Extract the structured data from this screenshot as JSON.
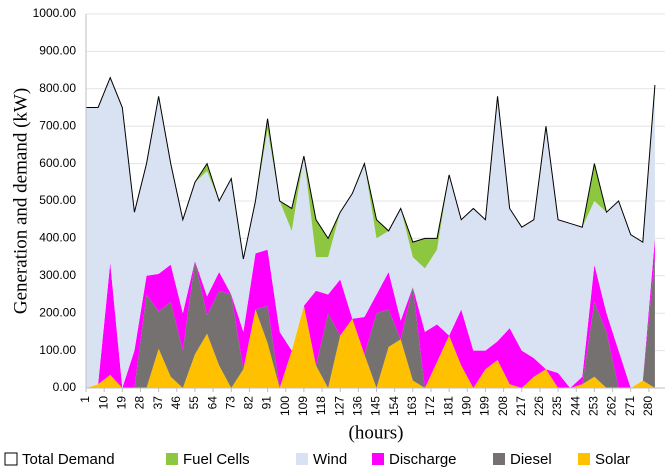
{
  "chart_data": {
    "type": "stacked_area",
    "y_label": "Generation and demand (kW)",
    "x_label": "(hours)",
    "x": [
      1,
      7,
      13,
      19,
      25,
      31,
      37,
      43,
      49,
      55,
      61,
      67,
      73,
      79,
      85,
      91,
      97,
      103,
      109,
      115,
      121,
      127,
      133,
      139,
      145,
      151,
      157,
      163,
      169,
      175,
      181,
      187,
      193,
      199,
      205,
      211,
      217,
      223,
      229,
      235,
      241,
      247,
      253,
      259,
      265,
      271,
      277,
      283
    ],
    "xlim": [
      1,
      288
    ],
    "xticks": [
      1,
      10,
      19,
      28,
      37,
      46,
      55,
      64,
      73,
      82,
      91,
      100,
      109,
      118,
      127,
      136,
      145,
      154,
      163,
      172,
      181,
      190,
      199,
      208,
      217,
      226,
      235,
      244,
      253,
      262,
      271,
      280
    ],
    "ylim": [
      0,
      1000
    ],
    "yticks": [
      {
        "value": 0,
        "label": "0.00"
      },
      {
        "value": 100,
        "label": "100.00"
      },
      {
        "value": 200,
        "label": "200.00"
      },
      {
        "value": 300,
        "label": "300.00"
      },
      {
        "value": 400,
        "label": "400.00"
      },
      {
        "value": 500,
        "label": "500.00"
      },
      {
        "value": 600,
        "label": "600.00"
      },
      {
        "value": 700,
        "label": "700.00"
      },
      {
        "value": 800,
        "label": "800.00"
      },
      {
        "value": 900,
        "label": "900.00"
      },
      {
        "value": 1000,
        "label": "1000.00"
      }
    ],
    "grid": true,
    "legend": "bottom",
    "series": [
      {
        "name": "Total Demand",
        "type": "line",
        "color": "#000000",
        "values": [
          750,
          750,
          830,
          750,
          470,
          600,
          780,
          600,
          450,
          550,
          600,
          500,
          560,
          345,
          500,
          720,
          500,
          480,
          620,
          450,
          400,
          470,
          520,
          600,
          450,
          420,
          480,
          390,
          400,
          400,
          570,
          450,
          480,
          450,
          780,
          480,
          430,
          450,
          700,
          450,
          440,
          430,
          600,
          470,
          500,
          410,
          390,
          810
        ]
      },
      {
        "name": "Fuel Cells",
        "color": "#8dc63f",
        "values": [
          0,
          0,
          0,
          0,
          0,
          0,
          0,
          0,
          0,
          0,
          20,
          0,
          0,
          0,
          0,
          30,
          0,
          60,
          0,
          100,
          50,
          0,
          0,
          0,
          50,
          0,
          0,
          40,
          80,
          30,
          0,
          0,
          0,
          0,
          0,
          0,
          0,
          0,
          0,
          0,
          0,
          0,
          100,
          0,
          0,
          0,
          0,
          20
        ]
      },
      {
        "name": "Wind",
        "color": "#d9e2f3",
        "values": [
          750,
          740,
          495,
          750,
          370,
          300,
          475,
          270,
          250,
          210,
          335,
          190,
          310,
          195,
          140,
          320,
          350,
          320,
          400,
          90,
          100,
          180,
          335,
          410,
          150,
          110,
          300,
          80,
          170,
          200,
          430,
          240,
          380,
          350,
          655,
          320,
          330,
          370,
          650,
          410,
          440,
          400,
          170,
          270,
          400,
          410,
          370,
          390
        ]
      },
      {
        "name": "Discharge",
        "color": "#ff00ff",
        "values": [
          0,
          0,
          300,
          0,
          100,
          50,
          100,
          100,
          100,
          0,
          50,
          50,
          0,
          100,
          150,
          150,
          150,
          0,
          0,
          200,
          50,
          150,
          0,
          100,
          50,
          100,
          50,
          0,
          150,
          100,
          0,
          150,
          100,
          50,
          50,
          150,
          100,
          50,
          0,
          40,
          0,
          20,
          100,
          50,
          100,
          0,
          0,
          50
        ]
      },
      {
        "name": "Diesel",
        "color": "#767171",
        "values": [
          0,
          0,
          0,
          0,
          0,
          250,
          100,
          200,
          100,
          250,
          50,
          200,
          250,
          0,
          0,
          100,
          0,
          0,
          0,
          0,
          200,
          0,
          0,
          0,
          200,
          100,
          0,
          250,
          0,
          0,
          0,
          0,
          0,
          0,
          0,
          0,
          0,
          0,
          0,
          0,
          0,
          0,
          200,
          150,
          0,
          0,
          0,
          350
        ]
      },
      {
        "name": "Solar",
        "color": "#ffc000",
        "values": [
          0,
          10,
          35,
          0,
          0,
          0,
          105,
          30,
          0,
          90,
          145,
          60,
          0,
          50,
          210,
          120,
          0,
          100,
          220,
          60,
          0,
          140,
          185,
          90,
          0,
          110,
          130,
          20,
          0,
          70,
          140,
          60,
          0,
          50,
          75,
          10,
          0,
          30,
          50,
          0,
          0,
          10,
          30,
          0,
          0,
          0,
          20,
          0
        ]
      }
    ]
  }
}
